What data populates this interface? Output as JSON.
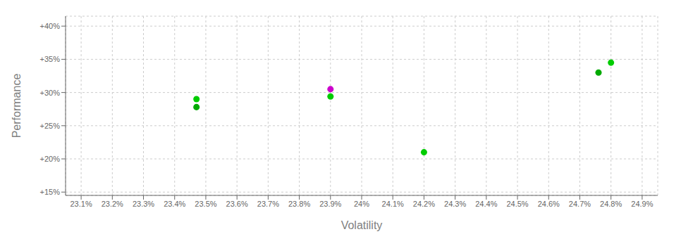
{
  "chart_data": {
    "type": "scatter",
    "xlabel": "Volatility",
    "ylabel": "Performance",
    "x": [
      23.47,
      23.47,
      23.9,
      23.9,
      24.2,
      24.8,
      24.76
    ],
    "values": [
      29.0,
      27.8,
      30.5,
      29.4,
      21.0,
      34.5,
      33.0
    ],
    "colors": [
      "#00cc00",
      "#00aa00",
      "#cc00cc",
      "#00cc00",
      "#00cc00",
      "#00cc00",
      "#00aa00"
    ],
    "xlim": [
      23.05,
      24.95
    ],
    "ylim": [
      14.5,
      41.5
    ],
    "xticks": [
      {
        "value": 23.1,
        "label": "23.1%"
      },
      {
        "value": 23.2,
        "label": "23.2%"
      },
      {
        "value": 23.3,
        "label": "23.3%"
      },
      {
        "value": 23.4,
        "label": "23.4%"
      },
      {
        "value": 23.5,
        "label": "23.5%"
      },
      {
        "value": 23.6,
        "label": "23.6%"
      },
      {
        "value": 23.7,
        "label": "23.7%"
      },
      {
        "value": 23.8,
        "label": "23.8%"
      },
      {
        "value": 23.9,
        "label": "23.9%"
      },
      {
        "value": 24.0,
        "label": "24%"
      },
      {
        "value": 24.1,
        "label": "24.1%"
      },
      {
        "value": 24.2,
        "label": "24.2%"
      },
      {
        "value": 24.3,
        "label": "24.3%"
      },
      {
        "value": 24.4,
        "label": "24.4%"
      },
      {
        "value": 24.5,
        "label": "24.5%"
      },
      {
        "value": 24.6,
        "label": "24.6%"
      },
      {
        "value": 24.7,
        "label": "24.7%"
      },
      {
        "value": 24.8,
        "label": "24.8%"
      },
      {
        "value": 24.9,
        "label": "24.9%"
      }
    ],
    "yticks": [
      {
        "value": 15,
        "label": "+15%"
      },
      {
        "value": 20,
        "label": "+20%"
      },
      {
        "value": 25,
        "label": "+25%"
      },
      {
        "value": 30,
        "label": "+30%"
      },
      {
        "value": 35,
        "label": "+35%"
      },
      {
        "value": 40,
        "label": "+40%"
      }
    ],
    "grid": true
  }
}
